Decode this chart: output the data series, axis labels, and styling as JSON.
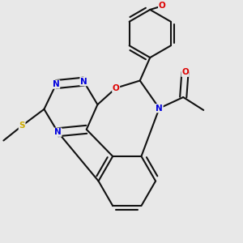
{
  "bg_color": "#e8e8e8",
  "bond_color": "#111111",
  "bond_lw": 1.5,
  "dbo": 0.022,
  "atom_colors": {
    "N": "#0000dd",
    "O": "#dd0000",
    "S": "#ccaa00",
    "C": "#111111"
  },
  "fs": 7.5,
  "xlim": [
    -0.55,
    0.75
  ],
  "ylim": [
    -0.55,
    0.75
  ]
}
